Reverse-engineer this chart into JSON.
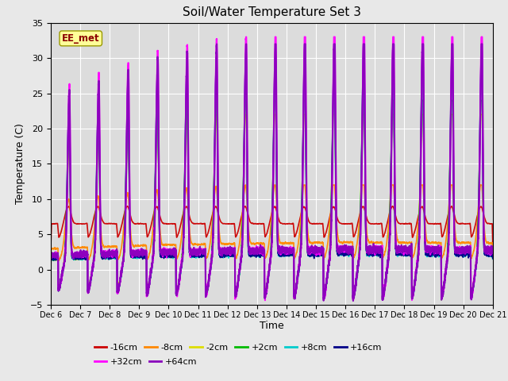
{
  "title": "Soil/Water Temperature Set 3",
  "xlabel": "Time",
  "ylabel": "Temperature (C)",
  "ylim": [
    -5,
    35
  ],
  "xlim": [
    0,
    15
  ],
  "x_tick_labels": [
    "Dec 6",
    "Dec 7",
    "Dec 8",
    "Dec 9",
    "Dec 10",
    "Dec 11",
    "Dec 12",
    "Dec 13",
    "Dec 14",
    "Dec 15",
    "Dec 16",
    "Dec 17",
    "Dec 18",
    "Dec 19",
    "Dec 20",
    "Dec 21"
  ],
  "bg_color": "#dcdcdc",
  "fig_color": "#e8e8e8",
  "annotation_text": "EE_met",
  "annotation_color": "#8b0000",
  "annotation_bg": "#ffff99",
  "annotation_edge": "#999900",
  "series": [
    {
      "label": "-16cm",
      "color": "#cc0000",
      "lw": 1.2
    },
    {
      "label": "-8cm",
      "color": "#ff8800",
      "lw": 1.2
    },
    {
      "label": "-2cm",
      "color": "#dddd00",
      "lw": 1.2
    },
    {
      "label": "+2cm",
      "color": "#00bb00",
      "lw": 1.2
    },
    {
      "label": "+8cm",
      "color": "#00cccc",
      "lw": 1.3
    },
    {
      "label": "+16cm",
      "color": "#000088",
      "lw": 1.3
    },
    {
      "label": "+32cm",
      "color": "#ff00ff",
      "lw": 1.5
    },
    {
      "label": "+64cm",
      "color": "#8800bb",
      "lw": 1.5
    }
  ],
  "legend_ncol1": 6,
  "legend_ncol2": 2
}
